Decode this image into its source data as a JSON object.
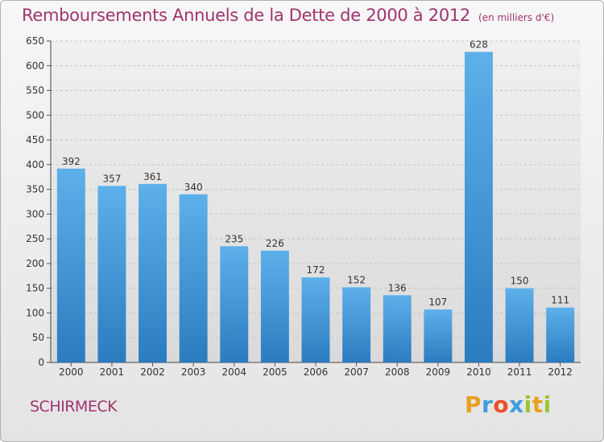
{
  "header": {
    "title": "Remboursements Annuels de la Dette de 2000 à 2012",
    "subtitle": "(en milliers d'€)"
  },
  "footer": {
    "commune": "SCHIRMECK",
    "brand_letters": [
      "P",
      "r",
      "o",
      "x",
      "i",
      "t",
      "i"
    ],
    "brand_colors": [
      "#e8a020",
      "#3c9ee0",
      "#e8502a",
      "#3c9ee0",
      "#9cc430",
      "#e8a020",
      "#9cc430"
    ]
  },
  "chart_data": {
    "type": "bar",
    "title": "Remboursements Annuels de la Dette de 2000 à 2012",
    "subtitle": "(en milliers d'€)",
    "xlabel": "",
    "ylabel": "",
    "categories": [
      "2000",
      "2001",
      "2002",
      "2003",
      "2004",
      "2005",
      "2006",
      "2007",
      "2008",
      "2009",
      "2010",
      "2011",
      "2012"
    ],
    "values": [
      392,
      357,
      361,
      340,
      235,
      226,
      172,
      152,
      136,
      107,
      628,
      150,
      111
    ],
    "ylim": [
      0,
      650
    ],
    "yticks": [
      0,
      50,
      100,
      150,
      200,
      250,
      300,
      350,
      400,
      450,
      500,
      550,
      600,
      650
    ],
    "grid": true,
    "colors": {
      "bar_top": "#5eb0ea",
      "bar_bottom": "#2a7cc0",
      "title": "#a0346e"
    }
  }
}
